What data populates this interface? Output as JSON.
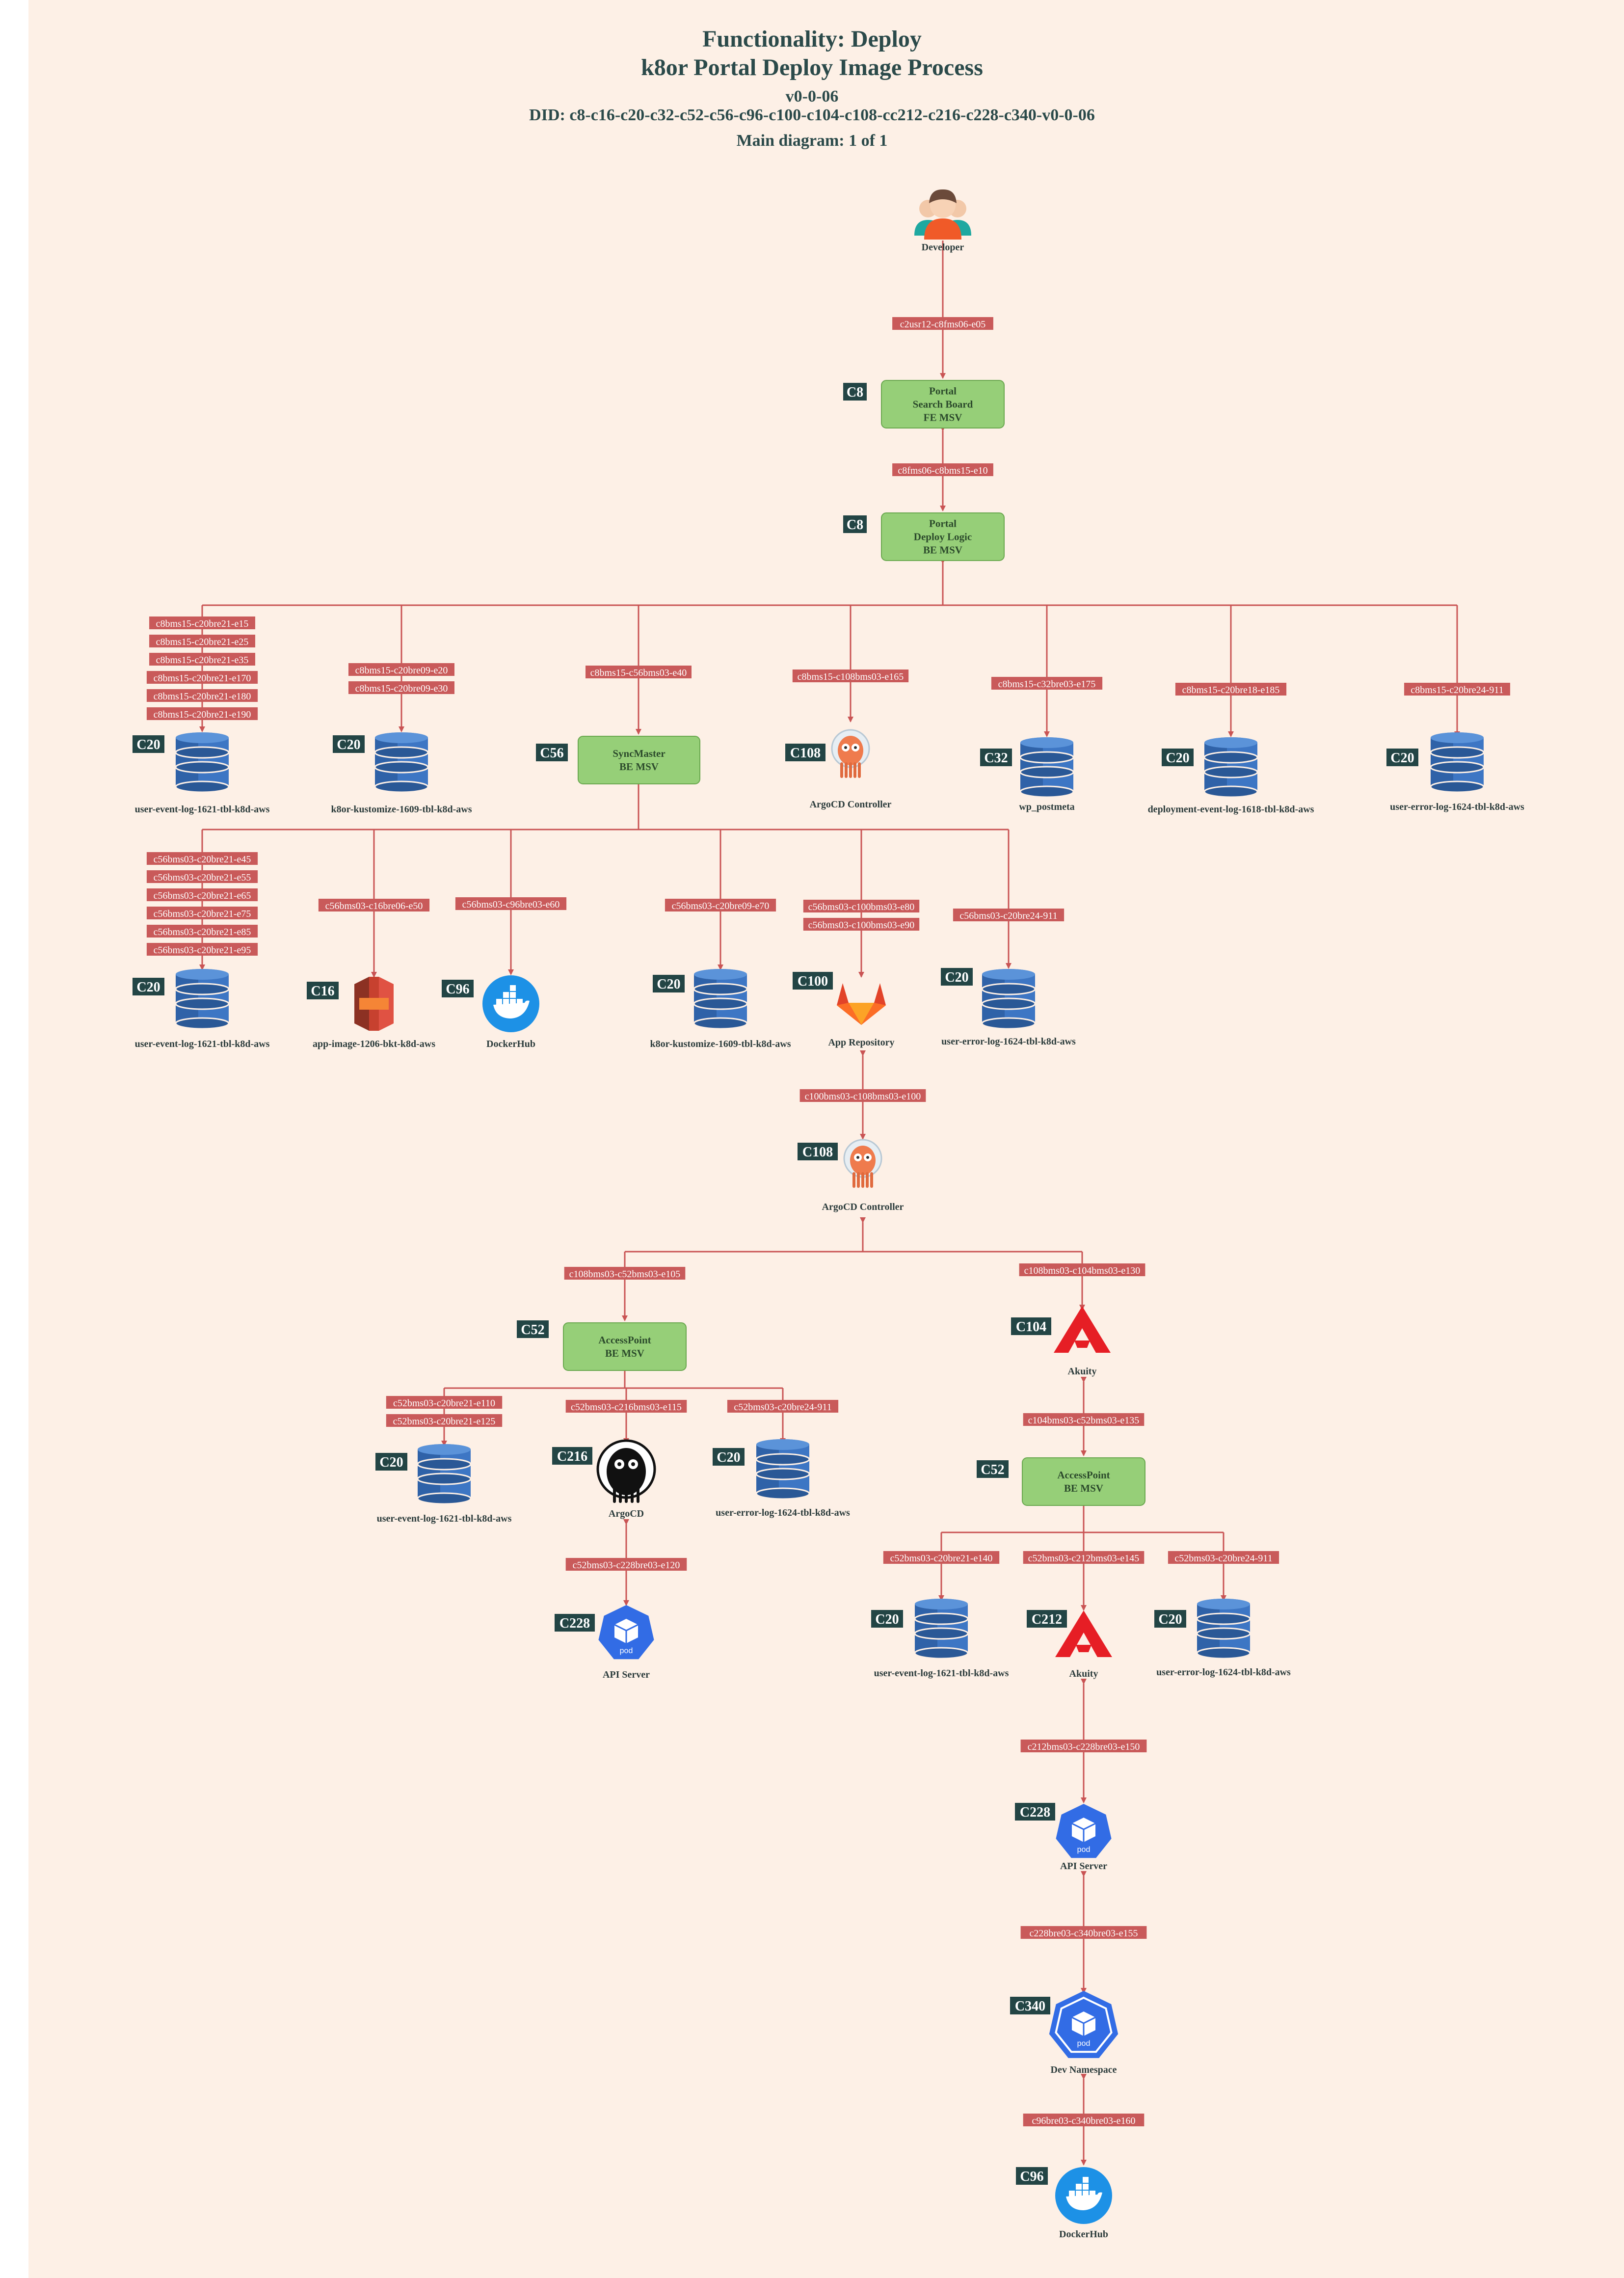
{
  "header": {
    "title_line1": "Functionality: Deploy",
    "title_line2": "k8or Portal Deploy Image Process",
    "version": "v0-0-06",
    "did": "DID: c8-c16-c20-c32-c52-c56-c96-c100-c104-c108-cc212-c216-c228-c340-v0-0-06",
    "main_diagram": "Main diagram: 1 of 1"
  },
  "colors": {
    "background": "#fdf0e6",
    "edge": "#c95454",
    "edge_label_bg": "#c95a5a",
    "tag_bg": "#234545",
    "msv_fill": "#96cf78",
    "db_blue": "#2f62a8"
  },
  "nodes": [
    {
      "id": "dev",
      "icon": "developer-icon",
      "label": "Developer"
    },
    {
      "id": "search",
      "icon": "msv-box",
      "tag": "C8",
      "lines": [
        "Portal",
        "Search Board",
        "FE MSV"
      ]
    },
    {
      "id": "deploy",
      "icon": "msv-box",
      "tag": "C8",
      "lines": [
        "Portal",
        "Deploy Logic",
        "BE MSV"
      ]
    },
    {
      "id": "r1",
      "icon": "dynamodb-icon",
      "tag": "C20",
      "label": "user-event-log-1621-tbl-k8d-aws"
    },
    {
      "id": "r2",
      "icon": "dynamodb-icon",
      "tag": "C20",
      "label": "k8or-kustomize-1609-tbl-k8d-aws"
    },
    {
      "id": "sync",
      "icon": "msv-box",
      "tag": "C56",
      "lines": [
        "SyncMaster",
        "BE MSV"
      ]
    },
    {
      "id": "argo1",
      "icon": "argo-icon",
      "tag": "C108",
      "label": "ArgoCD Controller"
    },
    {
      "id": "wp",
      "icon": "dynamodb-icon",
      "tag": "C32",
      "label": "wp_postmeta"
    },
    {
      "id": "r6",
      "icon": "dynamodb-icon",
      "tag": "C20",
      "label": "deployment-event-log-1618-tbl-k8d-aws"
    },
    {
      "id": "r7",
      "icon": "dynamodb-icon",
      "tag": "C20",
      "label": "user-error-log-1624-tbl-k8d-aws"
    },
    {
      "id": "s1",
      "icon": "dynamodb-icon",
      "tag": "C20",
      "label": "user-event-log-1621-tbl-k8d-aws"
    },
    {
      "id": "s3",
      "icon": "s3-icon",
      "tag": "C16",
      "label": "app-image-1206-bkt-k8d-aws"
    },
    {
      "id": "dh1",
      "icon": "docker-icon",
      "tag": "C96",
      "label": "DockerHub"
    },
    {
      "id": "s4",
      "icon": "dynamodb-icon",
      "tag": "C20",
      "label": "k8or-kustomize-1609-tbl-k8d-aws"
    },
    {
      "id": "gitlab",
      "icon": "gitlab-icon",
      "tag": "C100",
      "label": "App Repository"
    },
    {
      "id": "s6",
      "icon": "dynamodb-icon",
      "tag": "C20",
      "label": "user-error-log-1624-tbl-k8d-aws"
    },
    {
      "id": "argo2",
      "icon": "argo-icon",
      "tag": "C108",
      "label": "ArgoCD Controller"
    },
    {
      "id": "ap1",
      "icon": "msv-box",
      "tag": "C52",
      "lines": [
        "AccessPoint",
        "BE MSV"
      ]
    },
    {
      "id": "akuity1",
      "icon": "akuity-icon",
      "tag": "C104",
      "label": "Akuity"
    },
    {
      "id": "a1",
      "icon": "dynamodb-icon",
      "tag": "C20",
      "label": "user-event-log-1621-tbl-k8d-aws"
    },
    {
      "id": "argocd",
      "icon": "argocd-icon",
      "tag": "C216",
      "label": "ArgoCD"
    },
    {
      "id": "a3",
      "icon": "dynamodb-icon",
      "tag": "C20",
      "label": "user-error-log-1624-tbl-k8d-aws"
    },
    {
      "id": "api1",
      "icon": "k8s-pod-icon",
      "tag": "C228",
      "label": "API Server"
    },
    {
      "id": "ap2",
      "icon": "msv-box",
      "tag": "C52",
      "lines": [
        "AccessPoint",
        "BE MSV"
      ]
    },
    {
      "id": "b1",
      "icon": "dynamodb-icon",
      "tag": "C20",
      "label": "user-event-log-1621-tbl-k8d-aws"
    },
    {
      "id": "akuity2",
      "icon": "akuity-icon",
      "tag": "C212",
      "label": "Akuity"
    },
    {
      "id": "b3",
      "icon": "dynamodb-icon",
      "tag": "C20",
      "label": "user-error-log-1624-tbl-k8d-aws"
    },
    {
      "id": "api2",
      "icon": "k8s-pod-icon",
      "tag": "C228",
      "label": "API Server"
    },
    {
      "id": "ns",
      "icon": "k8s-pod-icon",
      "tag": "C340",
      "label": "Dev Namespace"
    },
    {
      "id": "dh2",
      "icon": "docker-icon",
      "tag": "C96",
      "label": "DockerHub"
    }
  ],
  "edges": [
    {
      "id": "e_dev",
      "labels": [
        "c2usr12-c8fms06-e05"
      ]
    },
    {
      "id": "e_fe",
      "labels": [
        "c8fms06-c8bms15-e10"
      ]
    },
    {
      "id": "e_r1",
      "labels": [
        "c8bms15-c20bre21-e15",
        "c8bms15-c20bre21-e25",
        "c8bms15-c20bre21-e35",
        "c8bms15-c20bre21-e170",
        "c8bms15-c20bre21-e180",
        "c8bms15-c20bre21-e190"
      ]
    },
    {
      "id": "e_r2",
      "labels": [
        "c8bms15-c20bre09-e20",
        "c8bms15-c20bre09-e30"
      ]
    },
    {
      "id": "e_sync",
      "labels": [
        "c8bms15-c56bms03-e40"
      ]
    },
    {
      "id": "e_argo1",
      "labels": [
        "c8bms15-c108bms03-e165"
      ]
    },
    {
      "id": "e_wp",
      "labels": [
        "c8bms15-c32bre03-e175"
      ]
    },
    {
      "id": "e_r6",
      "labels": [
        "c8bms15-c20bre18-e185"
      ]
    },
    {
      "id": "e_r7",
      "labels": [
        "c8bms15-c20bre24-911"
      ]
    },
    {
      "id": "e_s1",
      "labels": [
        "c56bms03-c20bre21-e45",
        "c56bms03-c20bre21-e55",
        "c56bms03-c20bre21-e65",
        "c56bms03-c20bre21-e75",
        "c56bms03-c20bre21-e85",
        "c56bms03-c20bre21-e95"
      ]
    },
    {
      "id": "e_s3",
      "labels": [
        "c56bms03-c16bre06-e50"
      ]
    },
    {
      "id": "e_dh1",
      "labels": [
        "c56bms03-c96bre03-e60"
      ]
    },
    {
      "id": "e_s4",
      "labels": [
        "c56bms03-c20bre09-e70"
      ]
    },
    {
      "id": "e_gitlab",
      "labels": [
        "c56bms03-c100bms03-e80",
        "c56bms03-c100bms03-e90"
      ]
    },
    {
      "id": "e_s6",
      "labels": [
        "c56bms03-c20bre24-911"
      ]
    },
    {
      "id": "e_argo2",
      "labels": [
        "c100bms03-c108bms03-e100"
      ]
    },
    {
      "id": "e_ap1",
      "labels": [
        "c108bms03-c52bms03-e105"
      ]
    },
    {
      "id": "e_ak1",
      "labels": [
        "c108bms03-c104bms03-e130"
      ]
    },
    {
      "id": "e_a1",
      "labels": [
        "c52bms03-c20bre21-e110",
        "c52bms03-c20bre21-e125"
      ]
    },
    {
      "id": "e_argocd",
      "labels": [
        "c52bms03-c216bms03-e115"
      ]
    },
    {
      "id": "e_a3",
      "labels": [
        "c52bms03-c20bre24-911"
      ]
    },
    {
      "id": "e_api1",
      "labels": [
        "c52bms03-c228bre03-e120"
      ]
    },
    {
      "id": "e_ap2",
      "labels": [
        "c104bms03-c52bms03-e135"
      ]
    },
    {
      "id": "e_b1",
      "labels": [
        "c52bms03-c20bre21-e140"
      ]
    },
    {
      "id": "e_ak2",
      "labels": [
        "c52bms03-c212bms03-e145"
      ]
    },
    {
      "id": "e_b3",
      "labels": [
        "c52bms03-c20bre24-911"
      ]
    },
    {
      "id": "e_api2",
      "labels": [
        "c212bms03-c228bre03-e150"
      ]
    },
    {
      "id": "e_ns",
      "labels": [
        "c228bre03-c340bre03-e155"
      ]
    },
    {
      "id": "e_dh2",
      "labels": [
        "c96bre03-c340bre03-e160"
      ]
    }
  ]
}
